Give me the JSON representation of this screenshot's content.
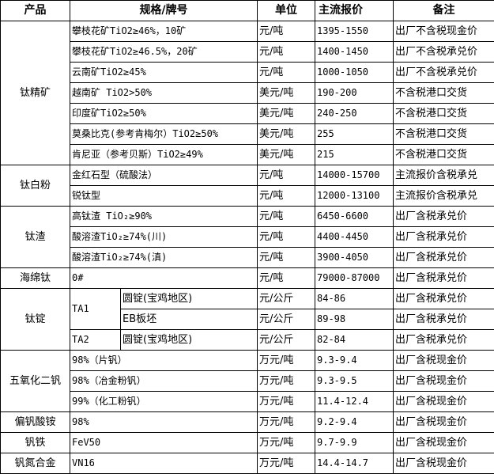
{
  "headers": [
    "产品",
    "规格/牌号",
    "单位",
    "主流报价",
    "备注"
  ],
  "groups": [
    {
      "product": "钛精矿",
      "rows": [
        {
          "spec": "攀枝花矿TiO2≥46%，10矿",
          "unit": "元/吨",
          "price": "1395-1550",
          "note": "出厂不含税现金价"
        },
        {
          "spec": "攀枝花矿TiO2≥46.5%，20矿",
          "unit": "元/吨",
          "price": "1400-1450",
          "note": "出厂不含税承兑价"
        },
        {
          "spec": "云南矿TiO2≥45%",
          "unit": "元/吨",
          "price": "1000-1050",
          "note": "出厂不含税承兑价"
        },
        {
          "spec": "越南矿 TiO2>50%",
          "unit": "美元/吨",
          "price": "190-200",
          "note": "不含税港口交货"
        },
        {
          "spec": "印度矿TiO2≥50%",
          "unit": "美元/吨",
          "price": "240-250",
          "note": "不含税港口交货"
        },
        {
          "spec": "莫桑比克(参考肯梅尔）TiO2≥50%",
          "unit": "美元/吨",
          "price": "255",
          "note": "不含税港口交货"
        },
        {
          "spec": "肯尼亚（参考贝斯）TiO2≥49%",
          "unit": "美元/吨",
          "price": "215",
          "note": "不含税港口交货"
        }
      ]
    },
    {
      "product": "钛白粉",
      "rows": [
        {
          "spec": "金红石型（硫酸法）",
          "unit": "元/吨",
          "price": "14000-15700",
          "note": "主流报价含税承兑"
        },
        {
          "spec": "锐钛型",
          "unit": "元/吨",
          "price": "12000-13100",
          "note": "主流报价含税承兑"
        }
      ]
    },
    {
      "product": "钛渣",
      "rows": [
        {
          "spec": "高钛渣 TiO₂≥90%",
          "unit": "元/吨",
          "price": "6450-6600",
          "note": "出厂含税承兑价"
        },
        {
          "spec": "酸溶渣TiO₂≥74%(川)",
          "unit": "元/吨",
          "price": "4400-4450",
          "note": "出厂含税承兑价"
        },
        {
          "spec": "酸溶渣TiO₂≥74%(滇)",
          "unit": "元/吨",
          "price": "3900-4050",
          "note": "出厂含税承兑价"
        }
      ]
    },
    {
      "product": "海绵钛",
      "rows": [
        {
          "spec": "0#",
          "unit": "元/吨",
          "price": "79000-87000",
          "note": "出厂含税承兑价"
        }
      ]
    },
    {
      "product": "钛锭",
      "grades": [
        {
          "grade": "TA1",
          "rows": [
            {
              "spec": "圆锭(宝鸡地区)",
              "unit": "元/公斤",
              "price": "84-86",
              "note": "出厂含税承兑价"
            },
            {
              "spec": "EB板坯",
              "unit": "元/公斤",
              "price": "89-98",
              "note": "出厂含税承兑价"
            }
          ]
        },
        {
          "grade": "TA2",
          "rows": [
            {
              "spec": "圆锭(宝鸡地区)",
              "unit": "元/公斤",
              "price": "82-84",
              "note": "出厂含税承兑价"
            }
          ]
        }
      ]
    },
    {
      "product": "五氧化二钒",
      "rows": [
        {
          "spec": "98%（片钒）",
          "unit": "万元/吨",
          "price": "9.3-9.4",
          "note": "出厂含税现金价"
        },
        {
          "spec": "98%（冶金粉钒）",
          "unit": "万元/吨",
          "price": "9.3-9.5",
          "note": "出厂含税现金价"
        },
        {
          "spec": "99%（化工粉钒）",
          "unit": "万元/吨",
          "price": "11.4-12.4",
          "note": "出厂含税现金价"
        }
      ]
    },
    {
      "product": "偏钒酸铵",
      "rows": [
        {
          "spec": "98%",
          "unit": "万元/吨",
          "price": "9.2-9.4",
          "note": "出厂含税现金价"
        }
      ]
    },
    {
      "product": "钒铁",
      "rows": [
        {
          "spec": "FeV50",
          "unit": "万元/吨",
          "price": "9.7-9.9",
          "note": "出厂含税现金价"
        }
      ]
    },
    {
      "product": "钒氮合金",
      "rows": [
        {
          "spec": "VN16",
          "unit": "万元/吨",
          "price": "14.4-14.7",
          "note": "出厂含税现金价"
        }
      ]
    }
  ]
}
